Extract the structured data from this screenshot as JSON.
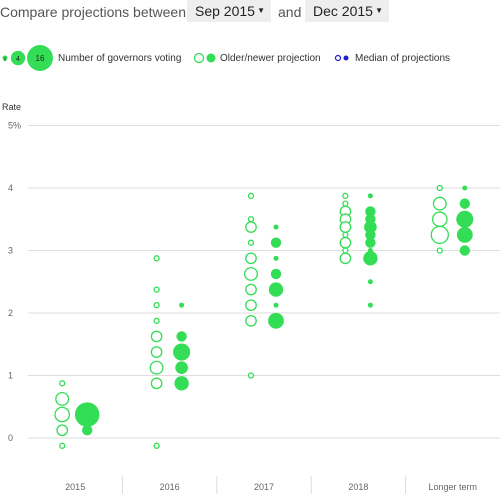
{
  "header": {
    "prefix": "Compare projections between:",
    "select_a": "Sep 2015",
    "conjunction": "and",
    "select_b": "Dec 2015"
  },
  "legend": {
    "size_keys": [
      "1",
      "4",
      "16"
    ],
    "size_label": "Number of governors voting",
    "older_newer_label": "Older/newer projection",
    "median_label": "Median of projections"
  },
  "colors": {
    "accent": "#33dd55",
    "median": "#1f1fcc",
    "grid": "#dddddd"
  },
  "chart_data": {
    "type": "scatter",
    "ylabel": "Rate",
    "ylim": [
      -0.5,
      5
    ],
    "yticks": [
      "0",
      "1",
      "2",
      "3",
      "4",
      "5%"
    ],
    "categories": [
      "2015",
      "2016",
      "2017",
      "2018",
      "Longer term"
    ],
    "series": [
      {
        "name": "Older",
        "style": "hollow",
        "points": [
          {
            "cat": "2015",
            "y": 0.875,
            "n": 1
          },
          {
            "cat": "2015",
            "y": 0.625,
            "n": 3
          },
          {
            "cat": "2015",
            "y": 0.375,
            "n": 4
          },
          {
            "cat": "2015",
            "y": 0.125,
            "n": 2
          },
          {
            "cat": "2015",
            "y": -0.125,
            "n": 1
          },
          {
            "cat": "2016",
            "y": 2.875,
            "n": 1
          },
          {
            "cat": "2016",
            "y": 2.375,
            "n": 1
          },
          {
            "cat": "2016",
            "y": 2.125,
            "n": 1
          },
          {
            "cat": "2016",
            "y": 1.875,
            "n": 1
          },
          {
            "cat": "2016",
            "y": 1.625,
            "n": 2
          },
          {
            "cat": "2016",
            "y": 1.375,
            "n": 2
          },
          {
            "cat": "2016",
            "y": 1.125,
            "n": 3
          },
          {
            "cat": "2016",
            "y": 0.875,
            "n": 2
          },
          {
            "cat": "2016",
            "y": -0.125,
            "n": 1
          },
          {
            "cat": "2017",
            "y": 3.875,
            "n": 1
          },
          {
            "cat": "2017",
            "y": 3.5,
            "n": 1
          },
          {
            "cat": "2017",
            "y": 3.375,
            "n": 2
          },
          {
            "cat": "2017",
            "y": 3.125,
            "n": 1
          },
          {
            "cat": "2017",
            "y": 2.875,
            "n": 2
          },
          {
            "cat": "2017",
            "y": 2.625,
            "n": 3
          },
          {
            "cat": "2017",
            "y": 2.375,
            "n": 2
          },
          {
            "cat": "2017",
            "y": 2.125,
            "n": 2
          },
          {
            "cat": "2017",
            "y": 1.875,
            "n": 2
          },
          {
            "cat": "2017",
            "y": 1.0,
            "n": 1
          },
          {
            "cat": "2018",
            "y": 3.875,
            "n": 1
          },
          {
            "cat": "2018",
            "y": 3.75,
            "n": 1
          },
          {
            "cat": "2018",
            "y": 3.625,
            "n": 2
          },
          {
            "cat": "2018",
            "y": 3.5,
            "n": 2
          },
          {
            "cat": "2018",
            "y": 3.375,
            "n": 2
          },
          {
            "cat": "2018",
            "y": 3.25,
            "n": 1
          },
          {
            "cat": "2018",
            "y": 3.125,
            "n": 2
          },
          {
            "cat": "2018",
            "y": 3.0,
            "n": 1
          },
          {
            "cat": "2018",
            "y": 2.875,
            "n": 2
          },
          {
            "cat": "Longer term",
            "y": 4.0,
            "n": 1
          },
          {
            "cat": "Longer term",
            "y": 3.75,
            "n": 3
          },
          {
            "cat": "Longer term",
            "y": 3.5,
            "n": 4
          },
          {
            "cat": "Longer term",
            "y": 3.25,
            "n": 6
          },
          {
            "cat": "Longer term",
            "y": 3.0,
            "n": 1
          }
        ]
      },
      {
        "name": "Newer",
        "style": "filled",
        "points": [
          {
            "cat": "2015",
            "y": 0.375,
            "n": 14
          },
          {
            "cat": "2015",
            "y": 0.125,
            "n": 2
          },
          {
            "cat": "2016",
            "y": 2.125,
            "n": 1
          },
          {
            "cat": "2016",
            "y": 1.625,
            "n": 2
          },
          {
            "cat": "2016",
            "y": 1.375,
            "n": 6
          },
          {
            "cat": "2016",
            "y": 1.125,
            "n": 3
          },
          {
            "cat": "2016",
            "y": 0.875,
            "n": 4
          },
          {
            "cat": "2017",
            "y": 3.375,
            "n": 1
          },
          {
            "cat": "2017",
            "y": 3.125,
            "n": 2
          },
          {
            "cat": "2017",
            "y": 2.875,
            "n": 1
          },
          {
            "cat": "2017",
            "y": 2.625,
            "n": 2
          },
          {
            "cat": "2017",
            "y": 2.375,
            "n": 4
          },
          {
            "cat": "2017",
            "y": 2.125,
            "n": 1
          },
          {
            "cat": "2017",
            "y": 1.875,
            "n": 5
          },
          {
            "cat": "2018",
            "y": 3.875,
            "n": 1
          },
          {
            "cat": "2018",
            "y": 3.625,
            "n": 2
          },
          {
            "cat": "2018",
            "y": 3.5,
            "n": 2
          },
          {
            "cat": "2018",
            "y": 3.375,
            "n": 3
          },
          {
            "cat": "2018",
            "y": 3.25,
            "n": 2
          },
          {
            "cat": "2018",
            "y": 3.125,
            "n": 2
          },
          {
            "cat": "2018",
            "y": 3.0,
            "n": 1
          },
          {
            "cat": "2018",
            "y": 2.875,
            "n": 4
          },
          {
            "cat": "2018",
            "y": 2.5,
            "n": 1
          },
          {
            "cat": "2018",
            "y": 2.125,
            "n": 1
          },
          {
            "cat": "Longer term",
            "y": 4.0,
            "n": 1
          },
          {
            "cat": "Longer term",
            "y": 3.75,
            "n": 2
          },
          {
            "cat": "Longer term",
            "y": 3.5,
            "n": 6
          },
          {
            "cat": "Longer term",
            "y": 3.25,
            "n": 5
          },
          {
            "cat": "Longer term",
            "y": 3.0,
            "n": 2
          }
        ]
      }
    ]
  }
}
